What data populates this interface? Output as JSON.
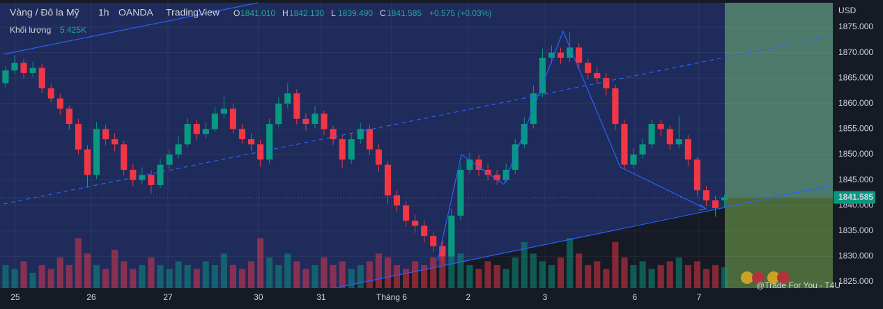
{
  "chart_data": {
    "type": "candlestick",
    "title": "Vàng / Đô la Mỹ",
    "interval": "1h",
    "broker": "OANDA",
    "platform": "TradingView",
    "legend": {
      "labels": [
        "O",
        "H",
        "L",
        "C"
      ],
      "values": [
        {
          "value": 1841.01,
          "label": "1841.010"
        },
        {
          "value": 1842.13,
          "label": "1842.130"
        },
        {
          "value": 1839.49,
          "label": "1839.490"
        },
        {
          "value": 1841.585,
          "label": "1841.585"
        }
      ],
      "change": "+0.575 (+0.03%)"
    },
    "volume_label": "Khối lượng",
    "volume_value": {
      "value": 5.425,
      "label": "5.425K"
    },
    "currency": "USD",
    "up_color": "#089981",
    "down_color": "#f23645",
    "candles": [
      [
        1864,
        1867.3,
        1863.2,
        1866.5
      ],
      [
        1866.5,
        1869.5,
        1865.8,
        1868
      ],
      [
        1868,
        1868.8,
        1864.9,
        1866
      ],
      [
        1866,
        1868.2,
        1865.2,
        1867
      ],
      [
        1867,
        1867.8,
        1862.1,
        1863
      ],
      [
        1863,
        1864,
        1860.2,
        1861
      ],
      [
        1861,
        1861.9,
        1857.8,
        1859
      ],
      [
        1859,
        1859.6,
        1854.9,
        1856
      ],
      [
        1856,
        1857,
        1850.1,
        1851
      ],
      [
        1851,
        1851.8,
        1843.5,
        1846
      ],
      [
        1846,
        1856.4,
        1845.2,
        1855
      ],
      [
        1855,
        1855.9,
        1851.8,
        1853
      ],
      [
        1853,
        1854.2,
        1850.6,
        1852
      ],
      [
        1852,
        1852.7,
        1845.9,
        1847
      ],
      [
        1847,
        1848.1,
        1843.8,
        1845
      ],
      [
        1845,
        1847.5,
        1844.2,
        1846
      ],
      [
        1846,
        1846.9,
        1842.3,
        1844
      ],
      [
        1844,
        1849.1,
        1843.4,
        1848
      ],
      [
        1848,
        1851,
        1847.2,
        1850
      ],
      [
        1850,
        1853.6,
        1849.3,
        1852
      ],
      [
        1852,
        1857.2,
        1851.4,
        1856
      ],
      [
        1856,
        1856.8,
        1852.9,
        1854
      ],
      [
        1854,
        1856.3,
        1853.1,
        1855
      ],
      [
        1855,
        1859.4,
        1854.5,
        1858
      ],
      [
        1858,
        1861.3,
        1857.2,
        1859
      ],
      [
        1859,
        1859.9,
        1854.1,
        1855
      ],
      [
        1855,
        1856,
        1852.2,
        1853
      ],
      [
        1853,
        1854.1,
        1850.7,
        1852
      ],
      [
        1852,
        1852.9,
        1847.6,
        1849
      ],
      [
        1849,
        1857,
        1848.3,
        1856
      ],
      [
        1856,
        1861.2,
        1855.4,
        1860
      ],
      [
        1860,
        1864,
        1859.1,
        1862
      ],
      [
        1862,
        1862.8,
        1855.9,
        1857
      ],
      [
        1857,
        1858.1,
        1854.7,
        1856
      ],
      [
        1856,
        1859.5,
        1855.2,
        1858
      ],
      [
        1858,
        1858.6,
        1853.8,
        1855
      ],
      [
        1855,
        1855.7,
        1851.9,
        1853
      ],
      [
        1853,
        1853.9,
        1847.4,
        1849
      ],
      [
        1849,
        1854.1,
        1848.2,
        1853
      ],
      [
        1853,
        1856.2,
        1852.1,
        1855
      ],
      [
        1855,
        1855.8,
        1849.9,
        1851
      ],
      [
        1851,
        1852,
        1846.6,
        1848
      ],
      [
        1848,
        1848.7,
        1840.3,
        1842
      ],
      [
        1842,
        1843.1,
        1838.7,
        1840
      ],
      [
        1840,
        1840.9,
        1835.8,
        1837
      ],
      [
        1837,
        1838.2,
        1834.6,
        1836
      ],
      [
        1836,
        1837,
        1832.7,
        1834
      ],
      [
        1834,
        1834.9,
        1830.8,
        1832
      ],
      [
        1832,
        1833.2,
        1828.9,
        1830
      ],
      [
        1830,
        1839.4,
        1829.2,
        1838
      ],
      [
        1838,
        1848.2,
        1837.1,
        1847
      ],
      [
        1847,
        1850.3,
        1846.2,
        1849
      ],
      [
        1849,
        1849.9,
        1845.8,
        1847
      ],
      [
        1847,
        1848.1,
        1844.9,
        1846
      ],
      [
        1846,
        1847,
        1844.1,
        1845
      ],
      [
        1845,
        1848.3,
        1844.4,
        1847
      ],
      [
        1847,
        1853.1,
        1846.2,
        1852
      ],
      [
        1852,
        1857.4,
        1851.2,
        1856
      ],
      [
        1856,
        1863.6,
        1855.1,
        1862
      ],
      [
        1862,
        1870.8,
        1861.2,
        1869
      ],
      [
        1869,
        1871.4,
        1867.9,
        1870
      ],
      [
        1870,
        1871,
        1867.8,
        1869
      ],
      [
        1869,
        1874,
        1868.2,
        1871
      ],
      [
        1871,
        1871.9,
        1866.8,
        1868
      ],
      [
        1868,
        1868.8,
        1864.7,
        1866
      ],
      [
        1866,
        1867.1,
        1863.8,
        1865
      ],
      [
        1865,
        1866,
        1861.6,
        1863
      ],
      [
        1863,
        1863.7,
        1854.8,
        1856
      ],
      [
        1856,
        1856.9,
        1847.1,
        1848
      ],
      [
        1848,
        1851.2,
        1847.3,
        1850
      ],
      [
        1850,
        1853.1,
        1849.2,
        1852
      ],
      [
        1852,
        1856.9,
        1851.3,
        1856
      ],
      [
        1856,
        1856.8,
        1853.6,
        1855
      ],
      [
        1855,
        1855.7,
        1850.9,
        1852
      ],
      [
        1852,
        1857.6,
        1851.2,
        1853
      ],
      [
        1853,
        1853.8,
        1847.7,
        1849
      ],
      [
        1849,
        1849.6,
        1841.9,
        1843
      ],
      [
        1843,
        1843.8,
        1839.9,
        1841
      ],
      [
        1841,
        1841.9,
        1837.8,
        1839.5
      ],
      [
        1841.01,
        1842.13,
        1839.49,
        1841.585
      ]
    ],
    "volume": [
      6,
      5,
      7,
      4,
      6,
      5,
      8,
      6,
      13,
      9,
      6,
      5,
      10,
      7,
      5,
      6,
      8,
      6,
      5,
      7,
      6,
      5,
      7,
      6,
      9,
      6,
      5,
      7,
      13,
      8,
      6,
      9,
      7,
      5,
      6,
      8,
      6,
      7,
      5,
      6,
      7,
      9,
      8,
      6,
      5,
      7,
      6,
      8,
      11,
      14,
      9,
      6,
      5,
      7,
      6,
      5,
      8,
      12,
      9,
      7,
      6,
      8,
      13,
      9,
      6,
      7,
      5,
      12,
      8,
      6,
      7,
      5,
      6,
      7,
      8,
      6,
      7,
      5,
      6,
      5.425
    ],
    "volume_ylim": [
      0,
      75
    ],
    "xlim": [
      -0.61,
      90.9
    ],
    "xticks": [
      {
        "value": 1.07,
        "label": "25"
      },
      {
        "value": 9.42,
        "label": "26"
      },
      {
        "value": 17.84,
        "label": "27"
      },
      {
        "value": 27.79,
        "label": "30"
      },
      {
        "value": 34.69,
        "label": "31"
      },
      {
        "value": 42.42,
        "label": "Tháng 6"
      },
      {
        "value": 50.84,
        "label": "2"
      },
      {
        "value": 59.27,
        "label": "3"
      },
      {
        "value": 69.14,
        "label": "6"
      },
      {
        "value": 76.19,
        "label": "7"
      }
    ],
    "ylim": [
      1823.77,
      1880.33
    ],
    "yticks": [
      {
        "value": 1825,
        "label": "1825.000"
      },
      {
        "value": 1830,
        "label": "1830.000"
      },
      {
        "value": 1835,
        "label": "1835.000"
      },
      {
        "value": 1840,
        "label": "1840.000"
      },
      {
        "value": 1845,
        "label": "1845.000"
      },
      {
        "value": 1850,
        "label": "1850.000"
      },
      {
        "value": 1855,
        "label": "1855.000"
      },
      {
        "value": 1860,
        "label": "1860.000"
      },
      {
        "value": 1865,
        "label": "1865.000"
      },
      {
        "value": 1870,
        "label": "1870.000"
      },
      {
        "value": 1875,
        "label": "1875.000"
      }
    ],
    "last_price": {
      "value": 1841.585,
      "label": "1841.585"
    },
    "watermark": "@Trade For You - T4U"
  }
}
